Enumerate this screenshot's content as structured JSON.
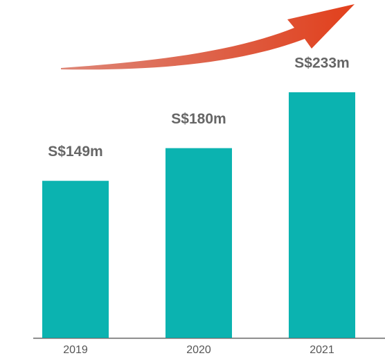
{
  "chart_data": {
    "type": "bar",
    "categories": [
      "2019",
      "2020",
      "2021"
    ],
    "values": [
      149,
      180,
      233
    ],
    "value_labels": [
      "S$149m",
      "S$180m",
      "S$233m"
    ],
    "color": "#0bb3b0"
  }
}
